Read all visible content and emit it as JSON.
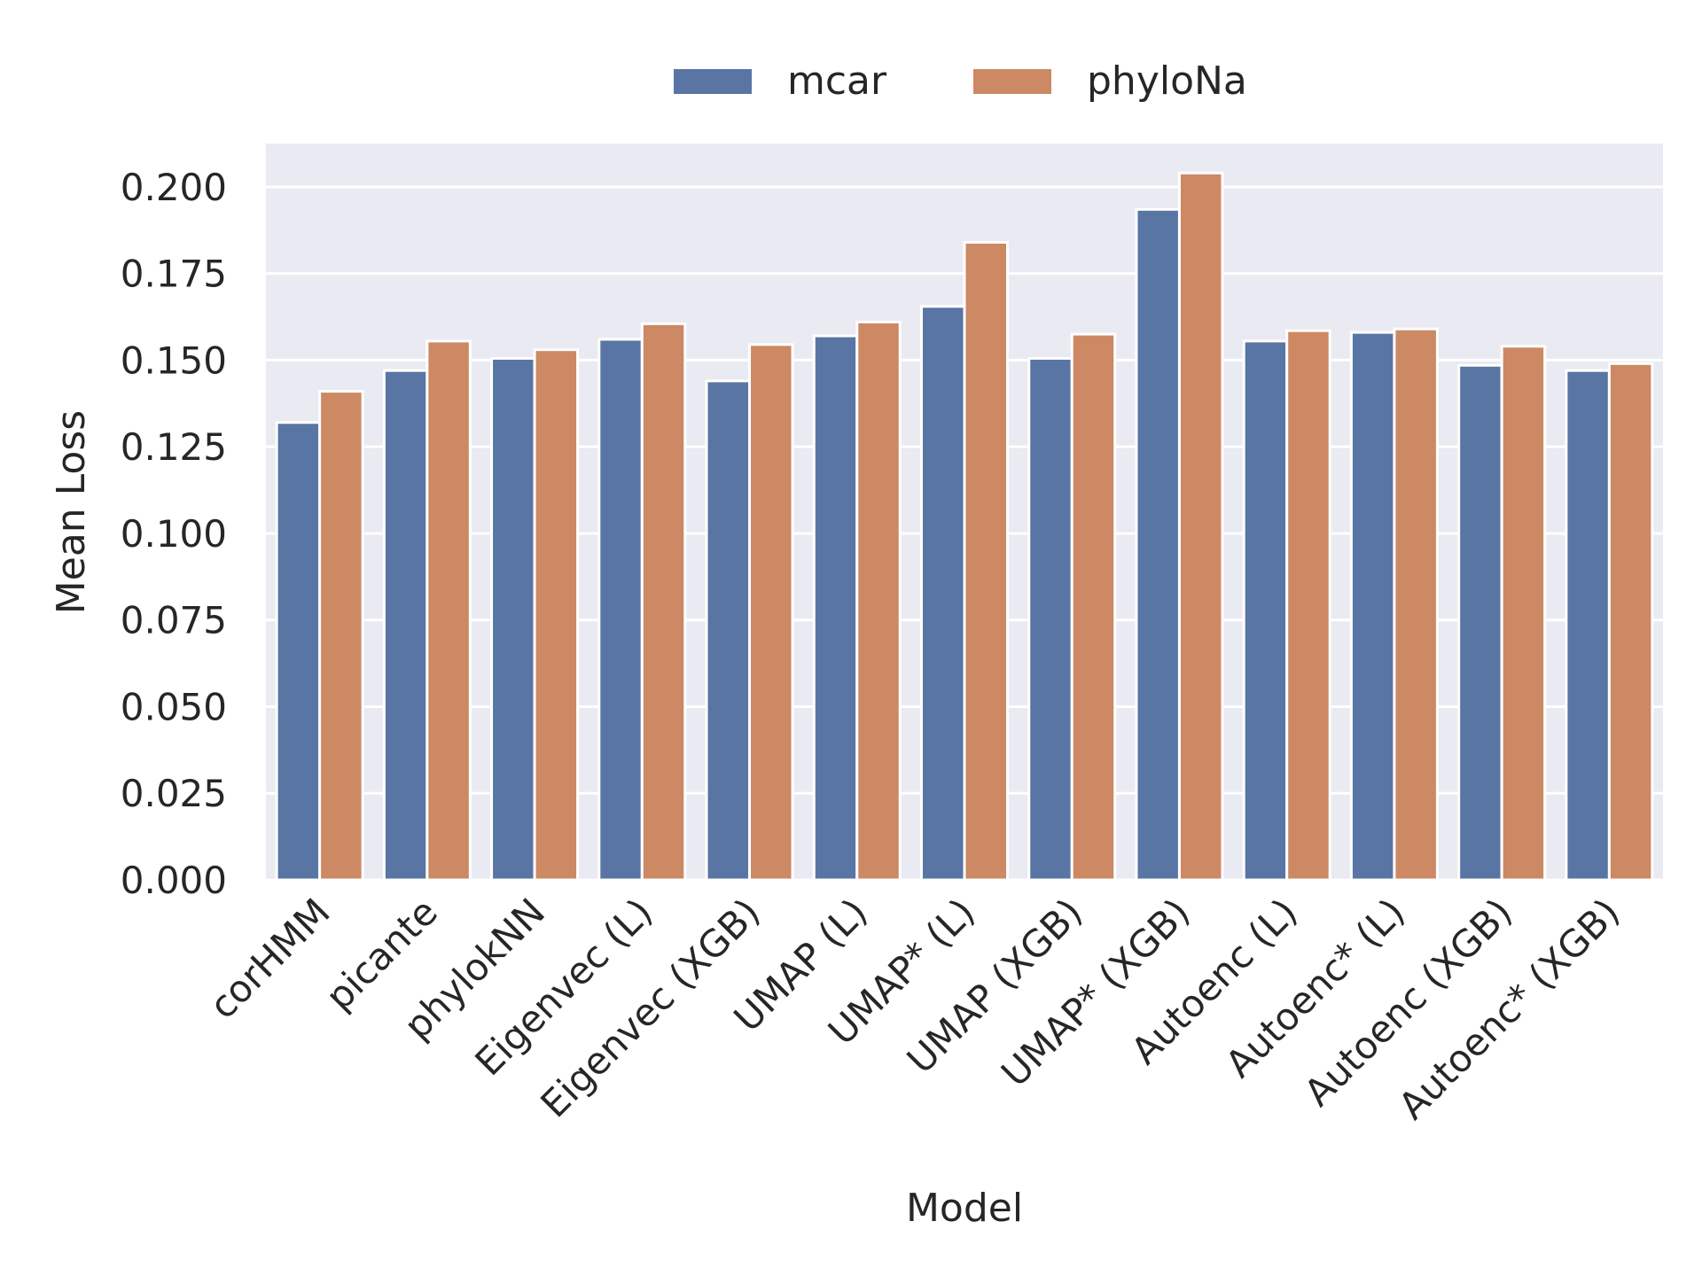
{
  "chart_data": {
    "type": "bar",
    "title": "",
    "xlabel": "Model",
    "ylabel": "Mean Loss",
    "ylim": [
      0,
      0.2125
    ],
    "yticks": [
      "0.000",
      "0.025",
      "0.050",
      "0.075",
      "0.100",
      "0.125",
      "0.150",
      "0.175",
      "0.200"
    ],
    "categories": [
      "corHMM",
      "picante",
      "phylokNN",
      "Eigenvec (L)",
      "Eigenvec (XGB)",
      "UMAP (L)",
      "UMAP* (L)",
      "UMAP (XGB)",
      "UMAP* (XGB)",
      "Autoenc (L)",
      "Autoenc* (L)",
      "Autoenc (XGB)",
      "Autoenc* (XGB)"
    ],
    "series": [
      {
        "name": "mcar",
        "color": "#5975a4",
        "values": [
          0.132,
          0.147,
          0.1505,
          0.156,
          0.144,
          0.157,
          0.1655,
          0.1505,
          0.1935,
          0.1555,
          0.158,
          0.1485,
          0.147
        ]
      },
      {
        "name": "phyloNa",
        "color": "#cc8963",
        "values": [
          0.141,
          0.1555,
          0.153,
          0.1605,
          0.1545,
          0.161,
          0.184,
          0.1575,
          0.204,
          0.1585,
          0.159,
          0.154,
          0.149
        ]
      }
    ],
    "grid": true,
    "legend": "top-center",
    "background": "#eaeaf2"
  }
}
